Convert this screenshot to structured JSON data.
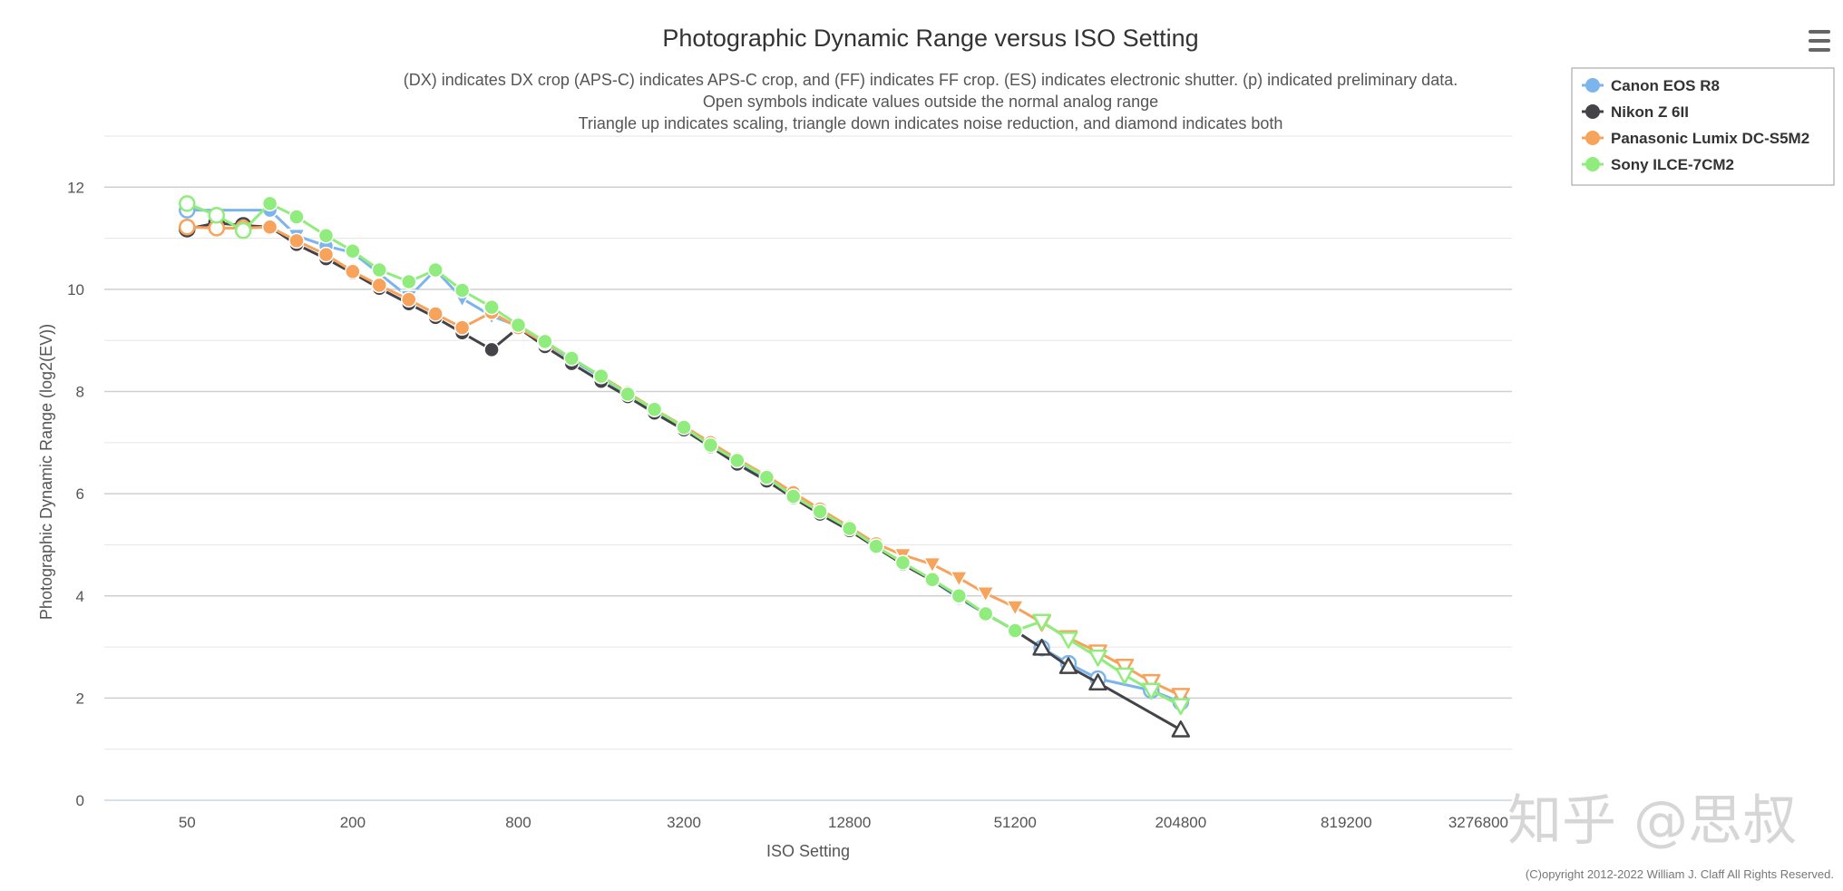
{
  "menu_icon": "hamburger-menu-icon",
  "copyright": "(C)opyright 2012-2022 William J. Claff All Rights Reserved.",
  "watermark": "知乎 @思叔",
  "chart_data": {
    "type": "line",
    "title": "Photographic Dynamic Range versus ISO Setting",
    "subtitle": [
      "(DX) indicates DX crop (APS-C) indicates APS-C crop, and (FF) indicates FF crop. (ES) indicates electronic shutter. (p) indicated preliminary data.",
      "Open symbols indicate values outside the normal analog range",
      "Triangle up indicates scaling, triangle down indicates noise reduction, and diamond indicates both"
    ],
    "xlabel": "ISO Setting",
    "ylabel": "Photographic Dynamic Range (log2(EV))",
    "xscale": "log2",
    "xlim": [
      25,
      3276800
    ],
    "ylim": [
      0,
      13
    ],
    "xticks": [
      50,
      200,
      800,
      3200,
      12800,
      51200,
      204800,
      819200,
      3276800
    ],
    "xtick_labels": [
      "50",
      "200",
      "800",
      "3200",
      "12800",
      "51200",
      "204800",
      "819200",
      "3276800"
    ],
    "yticks": [
      0,
      2,
      4,
      6,
      8,
      10,
      12
    ],
    "ytick_labels": [
      "0",
      "2",
      "4",
      "6",
      "8",
      "10",
      "12"
    ],
    "legend_position": "top-right",
    "series": [
      {
        "name": "Canon EOS R8",
        "color": "#7cb5ec",
        "points": [
          {
            "x": 50,
            "y": 11.55,
            "m": "open-circle"
          },
          {
            "x": 100,
            "y": 11.55,
            "m": "circle"
          },
          {
            "x": 125,
            "y": 11.05,
            "m": "tri-down"
          },
          {
            "x": 160,
            "y": 10.85,
            "m": "circle"
          },
          {
            "x": 200,
            "y": 10.72,
            "m": "circle"
          },
          {
            "x": 320,
            "y": 9.85,
            "m": "tri-down"
          },
          {
            "x": 400,
            "y": 10.38,
            "m": "circle"
          },
          {
            "x": 500,
            "y": 9.82,
            "m": "tri-down"
          },
          {
            "x": 640,
            "y": 9.48,
            "m": "tri-down"
          },
          {
            "x": 800,
            "y": 9.28,
            "m": "circle"
          },
          {
            "x": 1000,
            "y": 8.95,
            "m": "circle"
          },
          {
            "x": 1250,
            "y": 8.62,
            "m": "circle"
          },
          {
            "x": 1600,
            "y": 8.28,
            "m": "circle"
          },
          {
            "x": 2000,
            "y": 7.95,
            "m": "circle"
          },
          {
            "x": 2500,
            "y": 7.62,
            "m": "circle"
          },
          {
            "x": 3200,
            "y": 7.28,
            "m": "circle"
          },
          {
            "x": 4000,
            "y": 6.95,
            "m": "circle"
          },
          {
            "x": 5000,
            "y": 6.62,
            "m": "circle"
          },
          {
            "x": 6400,
            "y": 6.3,
            "m": "circle"
          },
          {
            "x": 8000,
            "y": 5.95,
            "m": "circle"
          },
          {
            "x": 10000,
            "y": 5.62,
            "m": "circle"
          },
          {
            "x": 12800,
            "y": 5.32,
            "m": "circle"
          },
          {
            "x": 16000,
            "y": 4.97,
            "m": "circle"
          },
          {
            "x": 20000,
            "y": 4.65,
            "m": "circle"
          },
          {
            "x": 25600,
            "y": 4.3,
            "m": "circle"
          },
          {
            "x": 32000,
            "y": 3.95,
            "m": "circle"
          },
          {
            "x": 40000,
            "y": 3.65,
            "m": "circle"
          },
          {
            "x": 51200,
            "y": 3.32,
            "m": "circle"
          },
          {
            "x": 64000,
            "y": 2.98,
            "m": "open-circle"
          },
          {
            "x": 80000,
            "y": 2.68,
            "m": "open-circle"
          },
          {
            "x": 102400,
            "y": 2.38,
            "m": "open-circle"
          },
          {
            "x": 160000,
            "y": 2.15,
            "m": "open-circle"
          },
          {
            "x": 204800,
            "y": 1.92,
            "m": "open-circle"
          }
        ]
      },
      {
        "name": "Nikon Z 6II",
        "color": "#434348",
        "points": [
          {
            "x": 50,
            "y": 11.18,
            "m": "open-circle"
          },
          {
            "x": 64,
            "y": 11.3,
            "m": "open-circle"
          },
          {
            "x": 80,
            "y": 11.25,
            "m": "open-circle"
          },
          {
            "x": 100,
            "y": 11.22,
            "m": "circle"
          },
          {
            "x": 125,
            "y": 10.88,
            "m": "circle"
          },
          {
            "x": 160,
            "y": 10.6,
            "m": "circle"
          },
          {
            "x": 200,
            "y": 10.32,
            "m": "circle"
          },
          {
            "x": 250,
            "y": 10.02,
            "m": "circle"
          },
          {
            "x": 320,
            "y": 9.72,
            "m": "circle"
          },
          {
            "x": 400,
            "y": 9.45,
            "m": "circle"
          },
          {
            "x": 500,
            "y": 9.15,
            "m": "circle"
          },
          {
            "x": 640,
            "y": 8.82,
            "m": "circle"
          },
          {
            "x": 800,
            "y": 9.25,
            "m": "circle"
          },
          {
            "x": 1000,
            "y": 8.88,
            "m": "circle"
          },
          {
            "x": 1250,
            "y": 8.55,
            "m": "circle"
          },
          {
            "x": 1600,
            "y": 8.2,
            "m": "circle"
          },
          {
            "x": 2000,
            "y": 7.9,
            "m": "circle"
          },
          {
            "x": 2500,
            "y": 7.58,
            "m": "circle"
          },
          {
            "x": 3200,
            "y": 7.25,
            "m": "circle"
          },
          {
            "x": 4000,
            "y": 6.92,
            "m": "circle"
          },
          {
            "x": 5000,
            "y": 6.58,
            "m": "circle"
          },
          {
            "x": 6400,
            "y": 6.25,
            "m": "circle"
          },
          {
            "x": 8000,
            "y": 5.92,
            "m": "circle"
          },
          {
            "x": 10000,
            "y": 5.6,
            "m": "circle"
          },
          {
            "x": 12800,
            "y": 5.28,
            "m": "circle"
          },
          {
            "x": 16000,
            "y": 4.95,
            "m": "circle"
          },
          {
            "x": 20000,
            "y": 4.62,
            "m": "circle"
          },
          {
            "x": 25600,
            "y": 4.3,
            "m": "circle"
          },
          {
            "x": 32000,
            "y": 3.98,
            "m": "circle"
          },
          {
            "x": 40000,
            "y": 3.65,
            "m": "circle"
          },
          {
            "x": 51200,
            "y": 3.32,
            "m": "circle"
          },
          {
            "x": 64000,
            "y": 2.98,
            "m": "open-tri-up"
          },
          {
            "x": 80000,
            "y": 2.62,
            "m": "open-tri-up"
          },
          {
            "x": 102400,
            "y": 2.3,
            "m": "open-tri-up"
          },
          {
            "x": 204800,
            "y": 1.38,
            "m": "open-tri-up"
          }
        ]
      },
      {
        "name": "Panasonic Lumix DC-S5M2",
        "color": "#f7a35c",
        "points": [
          {
            "x": 50,
            "y": 11.22,
            "m": "open-circle"
          },
          {
            "x": 64,
            "y": 11.2,
            "m": "open-circle"
          },
          {
            "x": 80,
            "y": 11.2,
            "m": "open-circle"
          },
          {
            "x": 100,
            "y": 11.22,
            "m": "circle"
          },
          {
            "x": 125,
            "y": 10.95,
            "m": "circle"
          },
          {
            "x": 160,
            "y": 10.68,
            "m": "circle"
          },
          {
            "x": 200,
            "y": 10.35,
            "m": "circle"
          },
          {
            "x": 250,
            "y": 10.08,
            "m": "circle"
          },
          {
            "x": 320,
            "y": 9.8,
            "m": "circle"
          },
          {
            "x": 400,
            "y": 9.52,
            "m": "circle"
          },
          {
            "x": 500,
            "y": 9.25,
            "m": "circle"
          },
          {
            "x": 640,
            "y": 9.55,
            "m": "circle"
          },
          {
            "x": 800,
            "y": 9.25,
            "m": "circle"
          },
          {
            "x": 1000,
            "y": 8.95,
            "m": "circle"
          },
          {
            "x": 1250,
            "y": 8.65,
            "m": "circle"
          },
          {
            "x": 1600,
            "y": 8.3,
            "m": "circle"
          },
          {
            "x": 2000,
            "y": 7.98,
            "m": "circle"
          },
          {
            "x": 2500,
            "y": 7.65,
            "m": "circle"
          },
          {
            "x": 3200,
            "y": 7.32,
            "m": "circle"
          },
          {
            "x": 4000,
            "y": 7.0,
            "m": "circle"
          },
          {
            "x": 5000,
            "y": 6.68,
            "m": "circle"
          },
          {
            "x": 6400,
            "y": 6.35,
            "m": "circle"
          },
          {
            "x": 8000,
            "y": 6.02,
            "m": "circle"
          },
          {
            "x": 10000,
            "y": 5.7,
            "m": "circle"
          },
          {
            "x": 12800,
            "y": 5.35,
            "m": "circle"
          },
          {
            "x": 16000,
            "y": 5.02,
            "m": "circle"
          },
          {
            "x": 20000,
            "y": 4.8,
            "m": "tri-down"
          },
          {
            "x": 25600,
            "y": 4.62,
            "m": "tri-down"
          },
          {
            "x": 32000,
            "y": 4.35,
            "m": "tri-down"
          },
          {
            "x": 40000,
            "y": 4.05,
            "m": "tri-down"
          },
          {
            "x": 51200,
            "y": 3.78,
            "m": "tri-down"
          },
          {
            "x": 64000,
            "y": 3.48,
            "m": "open-tri-down"
          },
          {
            "x": 80000,
            "y": 3.18,
            "m": "open-tri-down"
          },
          {
            "x": 102400,
            "y": 2.9,
            "m": "open-tri-down"
          },
          {
            "x": 128000,
            "y": 2.62,
            "m": "open-tri-down"
          },
          {
            "x": 160000,
            "y": 2.32,
            "m": "open-tri-down"
          },
          {
            "x": 204800,
            "y": 2.05,
            "m": "open-tri-down"
          }
        ]
      },
      {
        "name": "Sony ILCE-7CM2",
        "color": "#90ed7d",
        "points": [
          {
            "x": 50,
            "y": 11.68,
            "m": "open-circle"
          },
          {
            "x": 64,
            "y": 11.45,
            "m": "open-circle"
          },
          {
            "x": 80,
            "y": 11.15,
            "m": "open-circle"
          },
          {
            "x": 100,
            "y": 11.68,
            "m": "circle"
          },
          {
            "x": 125,
            "y": 11.42,
            "m": "circle"
          },
          {
            "x": 160,
            "y": 11.05,
            "m": "circle"
          },
          {
            "x": 200,
            "y": 10.75,
            "m": "circle"
          },
          {
            "x": 250,
            "y": 10.38,
            "m": "circle"
          },
          {
            "x": 320,
            "y": 10.15,
            "m": "circle"
          },
          {
            "x": 400,
            "y": 10.38,
            "m": "circle"
          },
          {
            "x": 500,
            "y": 9.98,
            "m": "circle"
          },
          {
            "x": 640,
            "y": 9.65,
            "m": "circle"
          },
          {
            "x": 800,
            "y": 9.3,
            "m": "circle"
          },
          {
            "x": 1000,
            "y": 8.98,
            "m": "circle"
          },
          {
            "x": 1250,
            "y": 8.65,
            "m": "circle"
          },
          {
            "x": 1600,
            "y": 8.3,
            "m": "circle"
          },
          {
            "x": 2000,
            "y": 7.95,
            "m": "circle"
          },
          {
            "x": 2500,
            "y": 7.65,
            "m": "circle"
          },
          {
            "x": 3200,
            "y": 7.3,
            "m": "circle"
          },
          {
            "x": 4000,
            "y": 6.95,
            "m": "circle"
          },
          {
            "x": 5000,
            "y": 6.65,
            "m": "circle"
          },
          {
            "x": 6400,
            "y": 6.32,
            "m": "circle"
          },
          {
            "x": 8000,
            "y": 5.95,
            "m": "circle"
          },
          {
            "x": 10000,
            "y": 5.65,
            "m": "circle"
          },
          {
            "x": 12800,
            "y": 5.32,
            "m": "circle"
          },
          {
            "x": 16000,
            "y": 4.97,
            "m": "circle"
          },
          {
            "x": 20000,
            "y": 4.65,
            "m": "circle"
          },
          {
            "x": 25600,
            "y": 4.32,
            "m": "circle"
          },
          {
            "x": 32000,
            "y": 4.0,
            "m": "circle"
          },
          {
            "x": 40000,
            "y": 3.65,
            "m": "circle"
          },
          {
            "x": 51200,
            "y": 3.32,
            "m": "circle"
          },
          {
            "x": 64000,
            "y": 3.5,
            "m": "open-tri-down"
          },
          {
            "x": 80000,
            "y": 3.15,
            "m": "open-tri-down"
          },
          {
            "x": 102400,
            "y": 2.8,
            "m": "open-tri-down"
          },
          {
            "x": 128000,
            "y": 2.45,
            "m": "open-tri-down"
          },
          {
            "x": 160000,
            "y": 2.15,
            "m": "open-tri-down"
          },
          {
            "x": 204800,
            "y": 1.85,
            "m": "open-tri-down"
          }
        ]
      }
    ]
  }
}
